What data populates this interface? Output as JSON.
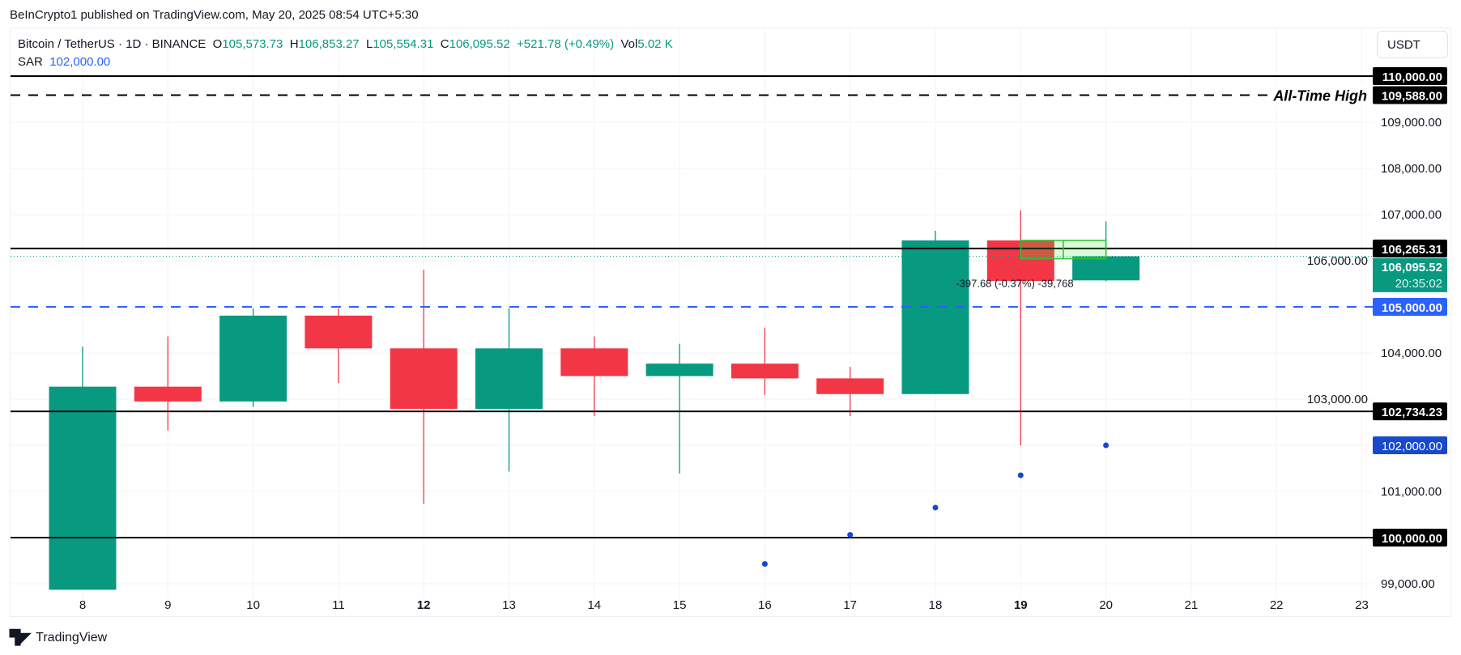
{
  "header": {
    "published": "BeInCrypto1 published on TradingView.com, May 20, 2025 08:54 UTC+5:30"
  },
  "legend": {
    "symbol": "Bitcoin / TetherUS · 1D · BINANCE",
    "o_label": "O",
    "o": "105,573.73",
    "h_label": "H",
    "h": "106,853.27",
    "l_label": "L",
    "l": "105,554.31",
    "c_label": "C",
    "c": "106,095.52",
    "change": "+521.78 (+0.49%)",
    "vol_label": "Vol",
    "vol": "5.02 K",
    "sar_label": "SAR",
    "sar": "102,000.00"
  },
  "currency_button": "USDT",
  "footer": {
    "brand": "TradingView"
  },
  "colors": {
    "up": "#089981",
    "down": "#f23645",
    "sar": "#1848cc",
    "blue_line": "#2962ff"
  },
  "chart_data": {
    "type": "candlestick",
    "ylim": [
      98700,
      110900
    ],
    "y_ticks": [
      99000,
      100000,
      101000,
      102000,
      103000,
      104000,
      105000,
      106000,
      107000,
      108000,
      109000,
      110000
    ],
    "y_tick_labels": [
      "99,000.00",
      "100,000.00",
      "101,000.00",
      "102,000.00",
      "103,000.00",
      "104,000.00",
      "105,000.00",
      "106,000.00",
      "107,000.00",
      "108,000.00",
      "109,000.00",
      "110,000.00"
    ],
    "x_labels": [
      "8",
      "9",
      "10",
      "11",
      "12",
      "13",
      "14",
      "15",
      "16",
      "17",
      "18",
      "19",
      "20",
      "21",
      "22",
      "23"
    ],
    "bold_x_labels": [
      "12",
      "19"
    ],
    "candles": [
      {
        "d": "8",
        "o": 98870,
        "h": 104140,
        "l": 98870,
        "c": 103270
      },
      {
        "d": "9",
        "o": 103270,
        "h": 104360,
        "l": 102320,
        "c": 102950
      },
      {
        "d": "10",
        "o": 102950,
        "h": 104970,
        "l": 102830,
        "c": 104810
      },
      {
        "d": "11",
        "o": 104810,
        "h": 104970,
        "l": 103350,
        "c": 104100
      },
      {
        "d": "12",
        "o": 104100,
        "h": 105800,
        "l": 100730,
        "c": 102790
      },
      {
        "d": "13",
        "o": 102790,
        "h": 104970,
        "l": 101430,
        "c": 104100
      },
      {
        "d": "14",
        "o": 104100,
        "h": 104360,
        "l": 102630,
        "c": 103500
      },
      {
        "d": "15",
        "o": 103500,
        "h": 104200,
        "l": 101390,
        "c": 103770
      },
      {
        "d": "16",
        "o": 103770,
        "h": 104550,
        "l": 103090,
        "c": 103450
      },
      {
        "d": "17",
        "o": 103450,
        "h": 103700,
        "l": 102630,
        "c": 103110
      },
      {
        "d": "18",
        "o": 103110,
        "h": 106650,
        "l": 103110,
        "c": 106440
      },
      {
        "d": "19",
        "o": 106440,
        "h": 107090,
        "l": 102000,
        "c": 105560
      },
      {
        "d": "20",
        "o": 105573.73,
        "h": 106853.27,
        "l": 105554.31,
        "c": 106095.52
      }
    ],
    "sar": [
      {
        "d": "16",
        "v": 99430
      },
      {
        "d": "17",
        "v": 100060
      },
      {
        "d": "18",
        "v": 100650
      },
      {
        "d": "19",
        "v": 101350
      },
      {
        "d": "20",
        "v": 102000
      }
    ],
    "levels": [
      {
        "v": 110000,
        "label": "110,000.00",
        "style": "solid",
        "color": "#000000"
      },
      {
        "v": 109588,
        "label": "109,588.00",
        "style": "dashed",
        "color": "#000000",
        "text": "All-Time High"
      },
      {
        "v": 106265.31,
        "label": "106,265.31",
        "style": "solid",
        "color": "#000000"
      },
      {
        "v": 105000,
        "label": "105,000.00",
        "style": "dashed",
        "color": "#2962ff"
      },
      {
        "v": 102734.23,
        "label": "102,734.23",
        "style": "solid",
        "color": "#000000"
      },
      {
        "v": 100000,
        "label": "100,000.00",
        "style": "solid",
        "color": "#000000"
      }
    ],
    "current_price": {
      "v": 106095.52,
      "label": "106,095.52",
      "countdown": "20:35:02"
    },
    "sar_label": {
      "v": 102000,
      "label": "102,000.00"
    },
    "measure": {
      "from": 106440,
      "to": 106042,
      "text": "-397.68 (-0.37%) -39,768"
    }
  }
}
